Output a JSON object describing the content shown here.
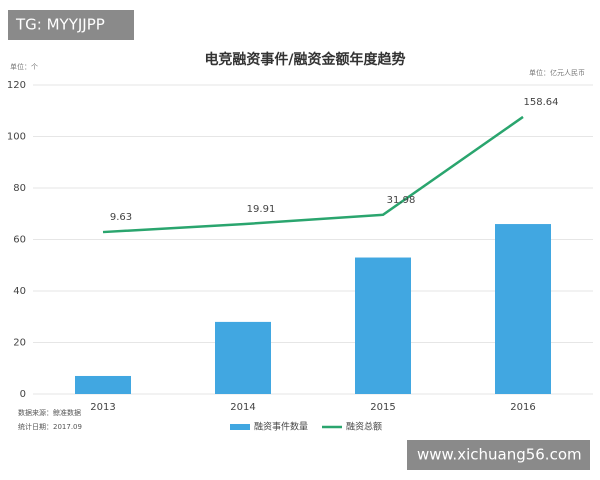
{
  "chart_data": {
    "type": "bar-line",
    "title": "电竞融资事件/融资金额年度趋势",
    "y_label": "单位：个",
    "y2_label": "单位：亿元人民币",
    "annotations": [
      "数据来源：鲸准数据",
      "统计日期：2017.09"
    ],
    "categories": [
      "2013",
      "2014",
      "2015",
      "2016"
    ],
    "series": [
      {
        "name": "融资事件数量",
        "type": "bar",
        "color": "#41a7e1",
        "values": [
          7,
          28,
          53,
          66
        ]
      },
      {
        "name": "融资总额",
        "type": "line",
        "axis": "y2",
        "color": "#2aa56e",
        "values": [
          9.63,
          19.91,
          31.98,
          158.64
        ]
      }
    ],
    "ylim": [
      0,
      120
    ],
    "yticks": [
      0,
      20,
      40,
      60,
      80,
      100,
      120
    ],
    "y2lim": [
      -200,
      200
    ],
    "grid": true,
    "legend": "bottom"
  },
  "watermarks": [
    "TG: MYYJJPP",
    "www.xichuang56.com"
  ]
}
